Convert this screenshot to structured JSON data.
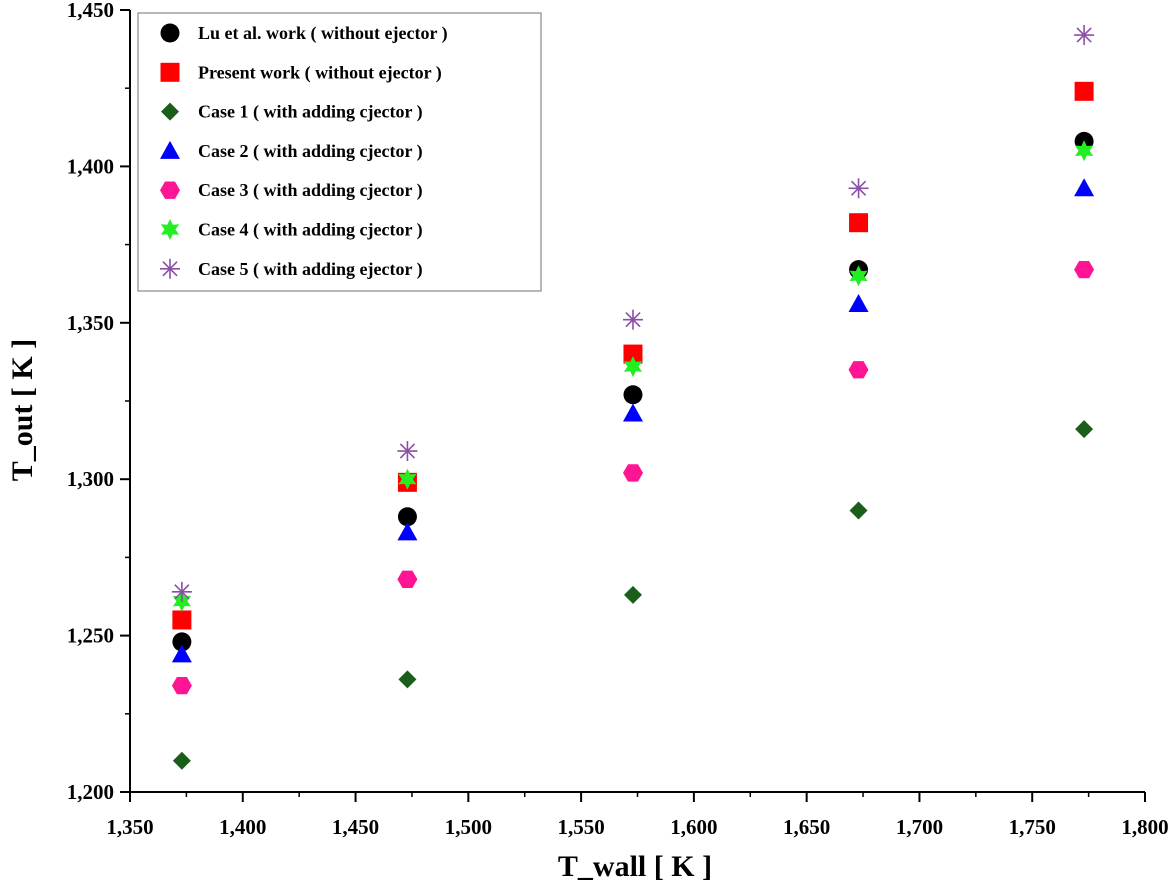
{
  "chart_data": {
    "type": "scatter",
    "xlabel": "T_wall [ K ]",
    "ylabel": "T_out [ K ]",
    "xlim": [
      1350,
      1800
    ],
    "ylim": [
      1200,
      1450
    ],
    "xticks": [
      1350,
      1400,
      1450,
      1500,
      1550,
      1600,
      1650,
      1700,
      1750,
      1800
    ],
    "yticks": [
      1200,
      1250,
      1300,
      1350,
      1400,
      1450
    ],
    "xtick_labels": [
      "1,350",
      "1,400",
      "1,450",
      "1,500",
      "1,550",
      "1,600",
      "1,650",
      "1,700",
      "1,750",
      "1,800"
    ],
    "ytick_labels": [
      "1,200",
      "1,250",
      "1,300",
      "1,350",
      "1,400",
      "1,450"
    ],
    "grid": false,
    "legend_position": "top-left",
    "x": [
      1373,
      1473,
      1573,
      1673,
      1773
    ],
    "series": [
      {
        "name": "Lu et al. work ( without ejector )",
        "marker": "circle",
        "color": "#000000",
        "values": [
          1248,
          1288,
          1327,
          1367,
          1408
        ]
      },
      {
        "name": "Present work ( without ejector )",
        "marker": "square",
        "color": "#ff0000",
        "values": [
          1255,
          1299,
          1340,
          1382,
          1424
        ]
      },
      {
        "name": "Case 1 ( with adding cjector )",
        "marker": "diamond",
        "color": "#1a5e1a",
        "values": [
          1210,
          1236,
          1263,
          1290,
          1316
        ]
      },
      {
        "name": "Case 2 ( with adding cjector )",
        "marker": "triangle",
        "color": "#0000ff",
        "values": [
          1244,
          1283,
          1321,
          1356,
          1393
        ]
      },
      {
        "name": "Case 3 ( with adding cjector )",
        "marker": "hexagon",
        "color": "#ff1493",
        "values": [
          1234,
          1268,
          1302,
          1335,
          1367
        ]
      },
      {
        "name": "Case 4 ( with adding cjector )",
        "marker": "star",
        "color": "#22ee22",
        "values": [
          1261,
          1300,
          1336,
          1365,
          1405
        ]
      },
      {
        "name": "Case 5 ( with adding ejector )",
        "marker": "asterisk",
        "color": "#8a4fa6",
        "values": [
          1264,
          1309,
          1351,
          1393,
          1442
        ]
      }
    ]
  }
}
